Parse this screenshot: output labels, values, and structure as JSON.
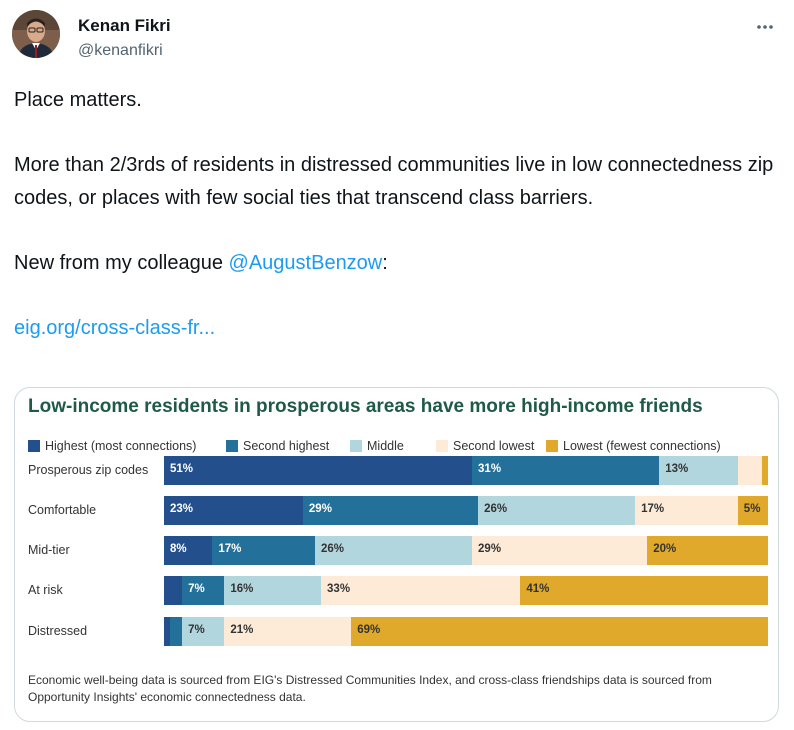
{
  "author": {
    "name": "Kenan Fikri",
    "handle": "@kenanfikri",
    "avatar_icon": "profile-photo",
    "more_icon": "more-horizontal-icon"
  },
  "tweet": {
    "line1": "Place matters.",
    "line2": "More than 2/3rds of residents in distressed communities live in low connectedness zip codes, or places with few social ties that transcend class barriers.",
    "line3_prefix": "New from my colleague ",
    "mention": "@AugustBenzow",
    "line3_suffix": ":",
    "url": "eig.org/cross-class-fr..."
  },
  "card": {
    "footnote": "Economic well-being data is sourced from EIG's Distressed Communities Index, and cross-class friendships data is sourced from Opportunity Insights' economic connectedness data."
  },
  "chart_data": {
    "type": "bar",
    "stacked": true,
    "orientation": "horizontal",
    "title": "Low-income residents in prosperous areas have more high-income friends",
    "categories": [
      "Prosperous zip codes",
      "Comfortable",
      "Mid-tier",
      "At risk",
      "Distressed"
    ],
    "series": [
      {
        "name": "Highest (most connections)",
        "color": "#234f8c",
        "values": [
          51,
          23,
          8,
          3,
          1
        ],
        "labels": [
          "51%",
          "23%",
          "8%",
          "",
          ""
        ]
      },
      {
        "name": "Second highest",
        "color": "#23709b",
        "values": [
          31,
          29,
          17,
          7,
          2
        ],
        "labels": [
          "31%",
          "29%",
          "17%",
          "7%",
          ""
        ]
      },
      {
        "name": "Middle",
        "color": "#b1d6de",
        "values": [
          13,
          26,
          26,
          16,
          7
        ],
        "labels": [
          "13%",
          "26%",
          "26%",
          "16%",
          "7%"
        ]
      },
      {
        "name": "Second lowest",
        "color": "#fdebd8",
        "values": [
          4,
          17,
          29,
          33,
          21
        ],
        "labels": [
          "",
          "17%",
          "29%",
          "33%",
          "21%"
        ]
      },
      {
        "name": "Lowest (fewest connections)",
        "color": "#e0a92c",
        "values": [
          1,
          5,
          20,
          41,
          69
        ],
        "labels": [
          "",
          "5%",
          "20%",
          "41%",
          "69%"
        ]
      }
    ],
    "legend_position": "top",
    "xlim": [
      0,
      100
    ]
  }
}
